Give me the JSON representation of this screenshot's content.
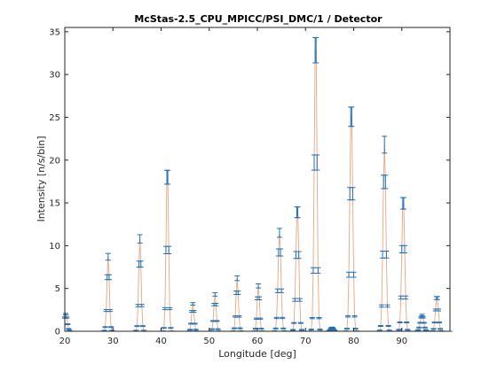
{
  "chart_data": {
    "type": "line",
    "title": "McStas-2.5_CPU_MPICC/PSI_DMC/1 / Detector",
    "xlabel": "Longitude [deg]",
    "ylabel": "Intensity [n/s/bin]",
    "xlim": [
      20,
      100
    ],
    "ylim": [
      0,
      35.5
    ],
    "xticks": [
      20,
      30,
      40,
      50,
      60,
      70,
      80,
      90
    ],
    "yticks": [
      0,
      5,
      10,
      15,
      20,
      25,
      30,
      35
    ],
    "grid": false,
    "colors": {
      "line": "#e8a583",
      "errorbar": "#1f6fb5",
      "axis": "#262626"
    },
    "peaks": [
      {
        "center": 20.2,
        "sigma": 0.3,
        "height": 2.0
      },
      {
        "center": 29.0,
        "sigma": 0.25,
        "height": 8.7
      },
      {
        "center": 35.6,
        "sigma": 0.25,
        "height": 10.8
      },
      {
        "center": 41.3,
        "sigma": 0.25,
        "height": 19.5
      },
      {
        "center": 46.6,
        "sigma": 0.25,
        "height": 3.2
      },
      {
        "center": 51.2,
        "sigma": 0.25,
        "height": 4.3
      },
      {
        "center": 55.8,
        "sigma": 0.25,
        "height": 6.2
      },
      {
        "center": 60.2,
        "sigma": 0.25,
        "height": 5.3
      },
      {
        "center": 64.6,
        "sigma": 0.3,
        "height": 11.5
      },
      {
        "center": 68.3,
        "sigma": 0.3,
        "height": 14.7
      },
      {
        "center": 72.1,
        "sigma": 0.28,
        "height": 35.0
      },
      {
        "center": 75.5,
        "sigma": 0.3,
        "height": 0.45
      },
      {
        "center": 79.5,
        "sigma": 0.3,
        "height": 26.5
      },
      {
        "center": 86.4,
        "sigma": 0.3,
        "height": 21.8
      },
      {
        "center": 90.3,
        "sigma": 0.3,
        "height": 15.8
      },
      {
        "center": 94.2,
        "sigma": 0.35,
        "height": 1.9
      },
      {
        "center": 97.3,
        "sigma": 0.3,
        "height": 4.1
      }
    ],
    "bin_step": 0.2,
    "relative_error": 0.045
  }
}
